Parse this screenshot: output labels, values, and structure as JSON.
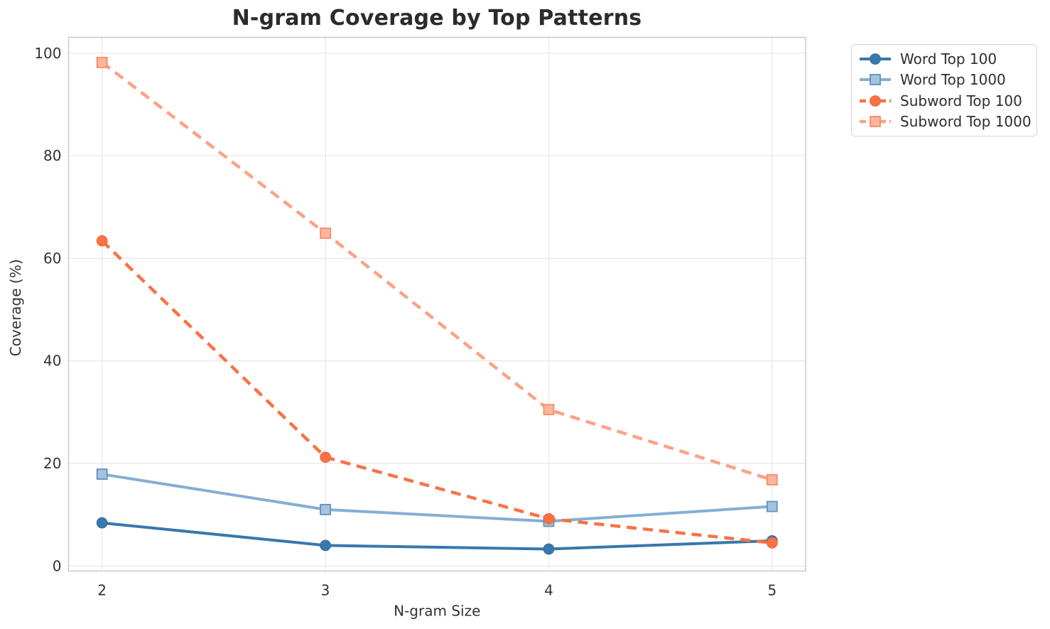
{
  "figure": {
    "background": "#ffffff",
    "title_color": "#2b2b2b"
  },
  "chart_data": {
    "type": "line",
    "title": "N-gram Coverage by Top Patterns",
    "xlabel": "N-gram Size",
    "ylabel": "Coverage (%)",
    "x": [
      2,
      3,
      4,
      5
    ],
    "xticks": [
      2,
      3,
      4,
      5
    ],
    "yticks": [
      0,
      20,
      40,
      60,
      80,
      100
    ],
    "xlim": [
      1.85,
      5.15
    ],
    "ylim": [
      -1,
      103.1
    ],
    "grid": true,
    "grid_color": "#e8e8e8",
    "spine_color": "#c9c9c9",
    "tick_label_color": "#333333",
    "legend_position": "outside upper right",
    "series": [
      {
        "name": "Word Top 100",
        "values": [
          8.4,
          4.0,
          3.3,
          4.9
        ],
        "color": "#3878ab",
        "linestyle": "solid",
        "marker": "circle",
        "marker_fill": "#3878ab",
        "marker_edge": "#34719f"
      },
      {
        "name": "Word Top 1000",
        "values": [
          17.9,
          11.0,
          8.7,
          11.6
        ],
        "color": "#85aed3",
        "linestyle": "solid",
        "marker": "square",
        "marker_fill": "#a5c3de",
        "marker_edge": "#5e92c0"
      },
      {
        "name": "Subword Top 100",
        "values": [
          63.4,
          21.2,
          9.2,
          4.5
        ],
        "color": "#f97245",
        "linestyle": "dashed",
        "marker": "circle",
        "marker_fill": "#f97245",
        "marker_edge": "#f2693c"
      },
      {
        "name": "Subword Top 1000",
        "values": [
          98.2,
          64.9,
          30.5,
          16.8
        ],
        "color": "#fba287",
        "linestyle": "dashed",
        "marker": "square",
        "marker_fill": "#fcb69e",
        "marker_edge": "#f98c64"
      }
    ]
  }
}
